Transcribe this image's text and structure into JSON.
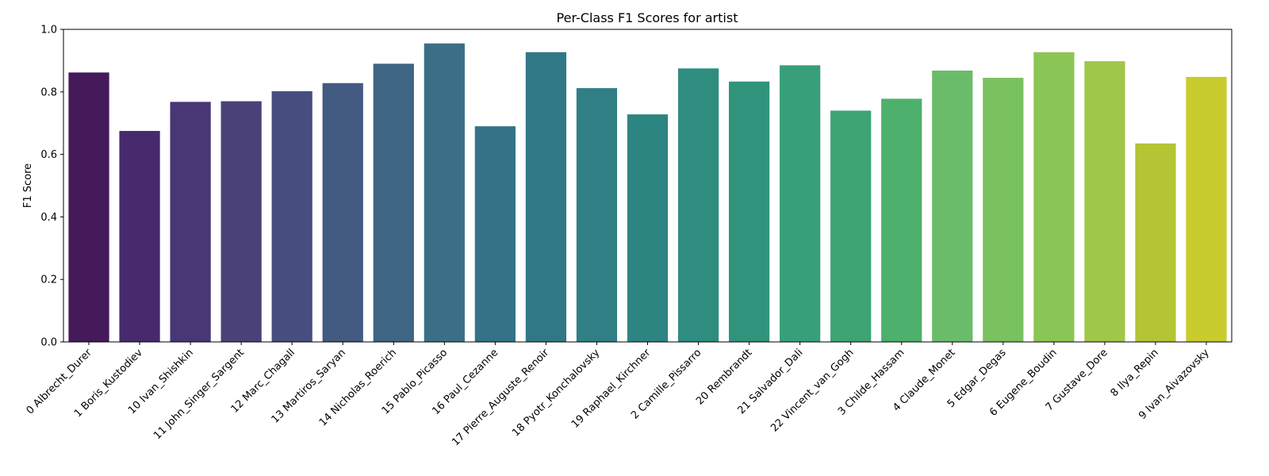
{
  "chart_data": {
    "type": "bar",
    "title": "Per-Class F1 Scores for artist",
    "xlabel": "",
    "ylabel": "F1 Score",
    "ylim": [
      0,
      1.0
    ],
    "yticks": [
      "0.0",
      "0.2",
      "0.4",
      "0.6",
      "0.8",
      "1.0"
    ],
    "grid": false,
    "categories": [
      "0 Albrecht_Durer",
      "1 Boris_Kustodiev",
      "10 Ivan_Shishkin",
      "11 John_Singer_Sargent",
      "12 Marc_Chagall",
      "13 Martiros_Saryan",
      "14 Nicholas_Roerich",
      "15 Pablo_Picasso",
      "16 Paul_Cezanne",
      "17 Pierre_Auguste_Renoir",
      "18 Pyotr_Konchalovsky",
      "19 Raphael_Kirchner",
      "2 Camille_Pissarro",
      "20 Rembrandt",
      "21 Salvador_Dali",
      "22 Vincent_van_Gogh",
      "3 Childe_Hassam",
      "4 Claude_Monet",
      "5 Edgar_Degas",
      "6 Eugene_Boudin",
      "7 Gustave_Dore",
      "8 Ilya_Repin",
      "9 Ivan_Aivazovsky"
    ],
    "values": [
      0.862,
      0.675,
      0.768,
      0.77,
      0.802,
      0.828,
      0.89,
      0.955,
      0.69,
      0.927,
      0.812,
      0.728,
      0.875,
      0.833,
      0.885,
      0.74,
      0.778,
      0.868,
      0.845,
      0.927,
      0.898,
      0.635,
      0.848
    ],
    "colors": [
      "#451a5b",
      "#472a6e",
      "#483675",
      "#4a4279",
      "#474e7f",
      "#435a81",
      "#3e6583",
      "#3b6f85",
      "#367287",
      "#317887",
      "#2f7f85",
      "#2d8582",
      "#2e8d7f",
      "#30947d",
      "#37a07a",
      "#3ea474",
      "#4eb06d",
      "#6abc6a",
      "#79c25f",
      "#8bc556",
      "#a0c64a",
      "#b4c434",
      "#c9cc2d"
    ]
  }
}
